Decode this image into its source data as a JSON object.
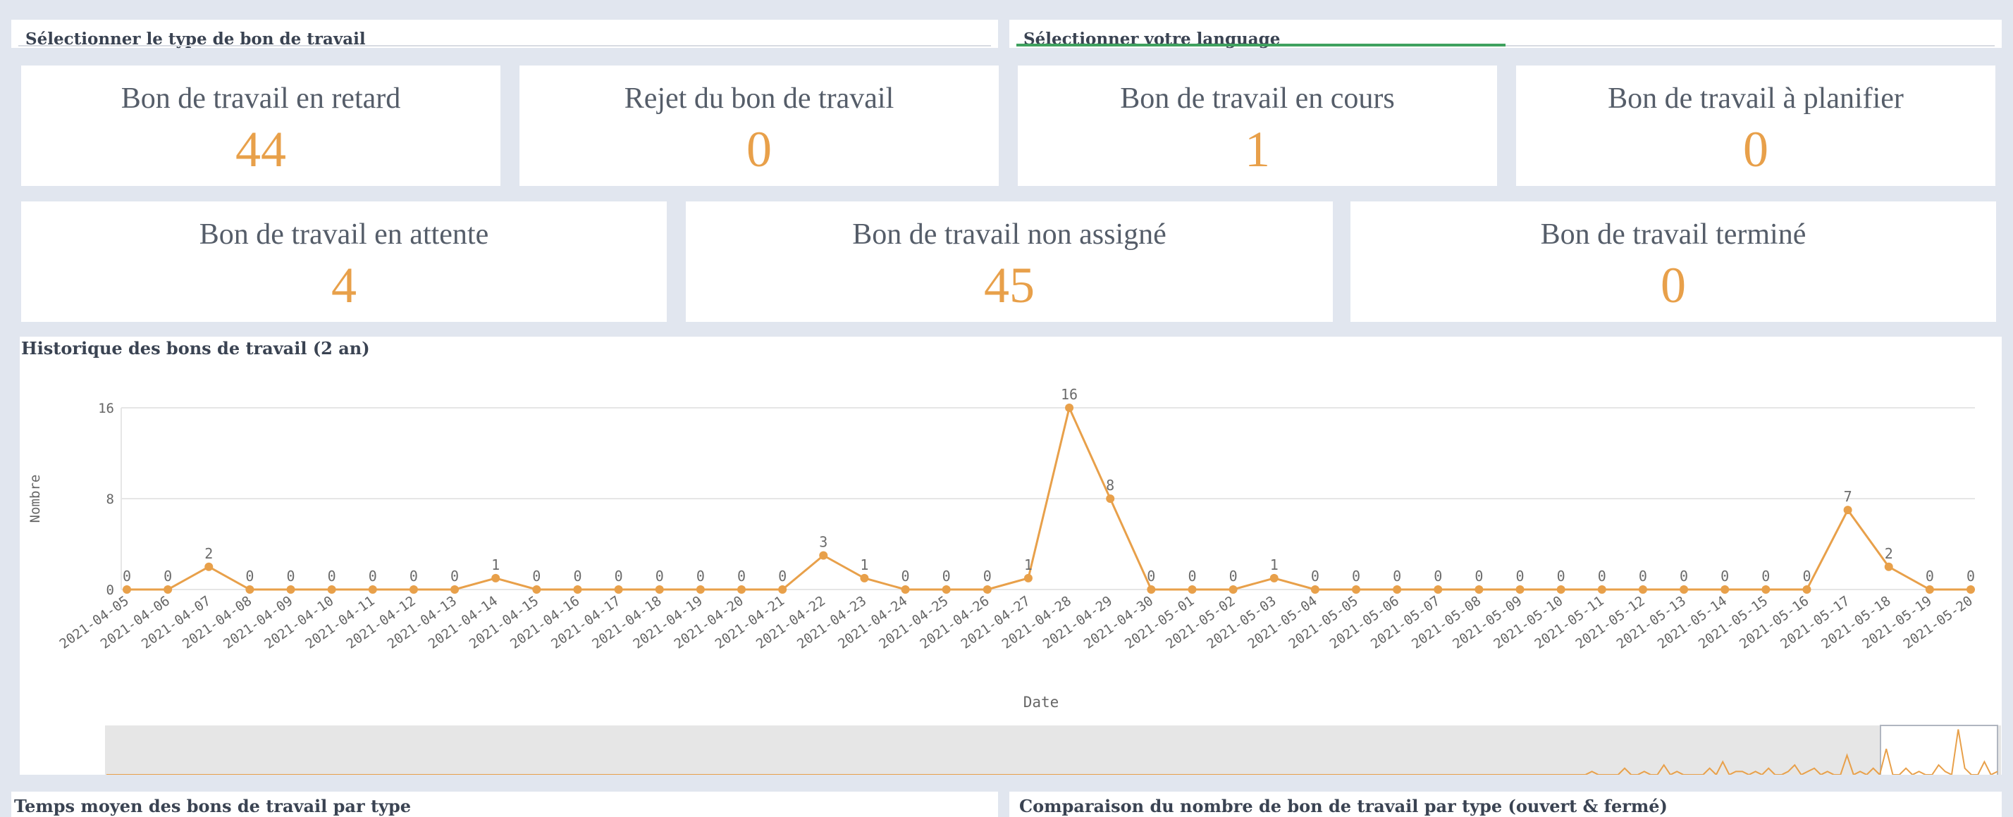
{
  "filters": {
    "work_order_type_label": "Sélectionner le type de bon de travail",
    "language_label": "Sélectionner votre language"
  },
  "kpis_row1": [
    {
      "title": "Bon de travail en retard",
      "value": "44"
    },
    {
      "title": "Rejet du bon de travail",
      "value": "0"
    },
    {
      "title": "Bon de travail en cours",
      "value": "1"
    },
    {
      "title": "Bon de travail à planifier",
      "value": "0"
    }
  ],
  "kpis_row2": [
    {
      "title": "Bon de travail en attente",
      "value": "4"
    },
    {
      "title": "Bon de travail non assigné",
      "value": "45"
    },
    {
      "title": "Bon de travail terminé",
      "value": "0"
    }
  ],
  "history": {
    "title": "Historique des bons de travail (2 an)"
  },
  "bottom": {
    "left_title": "Temps moyen des bons de travail par type",
    "right_title": "Comparaison du nombre de bon de travail par type (ouvert & fermé)"
  },
  "colors": {
    "accent": "#e8a04a",
    "green": "#3fa15f",
    "background": "#e1e6ef"
  },
  "chart_data": {
    "type": "line",
    "title": "Historique des bons de travail (2 an)",
    "xlabel": "Date",
    "ylabel": "Nombre",
    "ylim": [
      0,
      16
    ],
    "yticks": [
      0,
      8,
      16
    ],
    "grid": true,
    "x": [
      "2021-04-05",
      "2021-04-06",
      "2021-04-07",
      "2021-04-08",
      "2021-04-09",
      "2021-04-10",
      "2021-04-11",
      "2021-04-12",
      "2021-04-13",
      "2021-04-14",
      "2021-04-15",
      "2021-04-16",
      "2021-04-17",
      "2021-04-18",
      "2021-04-19",
      "2021-04-20",
      "2021-04-21",
      "2021-04-22",
      "2021-04-23",
      "2021-04-24",
      "2021-04-25",
      "2021-04-26",
      "2021-04-27",
      "2021-04-28",
      "2021-04-29",
      "2021-04-30",
      "2021-05-01",
      "2021-05-02",
      "2021-05-03",
      "2021-05-04",
      "2021-05-05",
      "2021-05-06",
      "2021-05-07",
      "2021-05-08",
      "2021-05-09",
      "2021-05-10",
      "2021-05-11",
      "2021-05-12",
      "2021-05-13",
      "2021-05-14",
      "2021-05-15",
      "2021-05-16",
      "2021-05-17",
      "2021-05-18",
      "2021-05-19",
      "2021-05-20"
    ],
    "values": [
      0,
      0,
      2,
      0,
      0,
      0,
      0,
      0,
      0,
      1,
      0,
      0,
      0,
      0,
      0,
      0,
      0,
      3,
      1,
      0,
      0,
      0,
      1,
      16,
      8,
      0,
      0,
      0,
      1,
      0,
      0,
      0,
      0,
      0,
      0,
      0,
      0,
      0,
      0,
      0,
      0,
      0,
      7,
      2,
      0,
      0
    ]
  }
}
